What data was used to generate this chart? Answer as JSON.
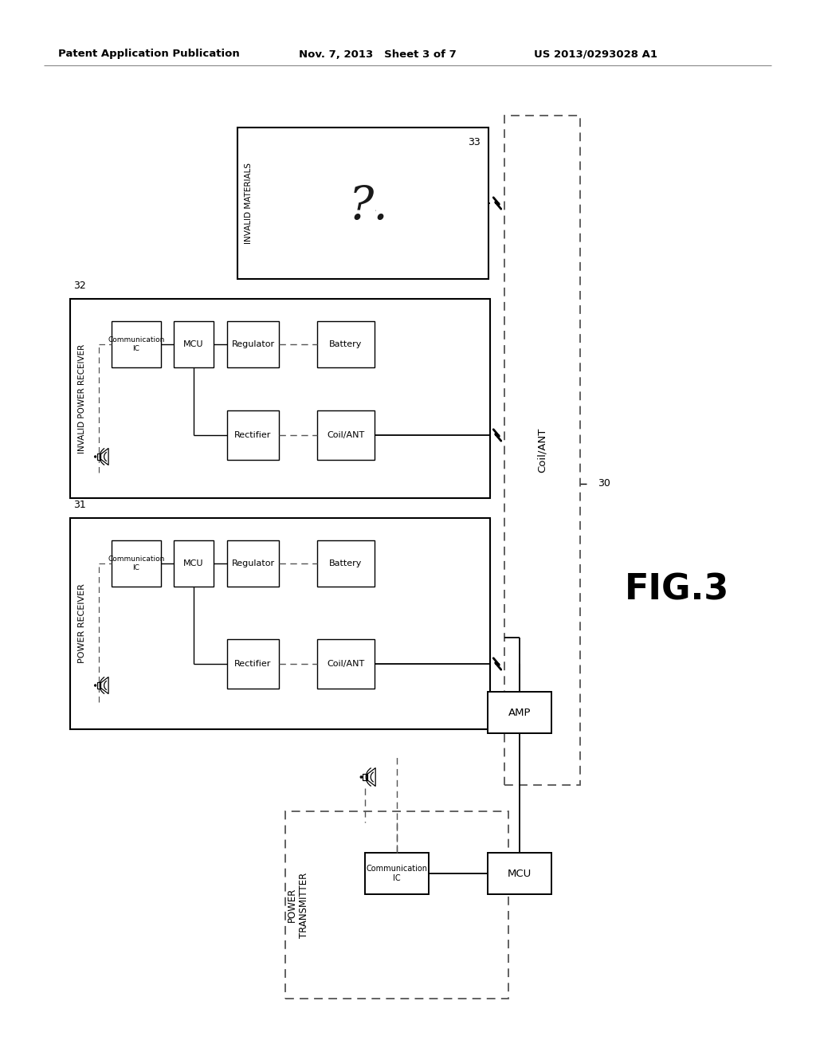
{
  "background_color": "#ffffff",
  "header_left": "Patent Application Publication",
  "header_mid": "Nov. 7, 2013   Sheet 3 of 7",
  "header_right": "US 2013/0293028 A1",
  "fig_label": "FIG.3",
  "label_30": "30",
  "label_31": "31",
  "label_32": "32",
  "label_33": "33"
}
